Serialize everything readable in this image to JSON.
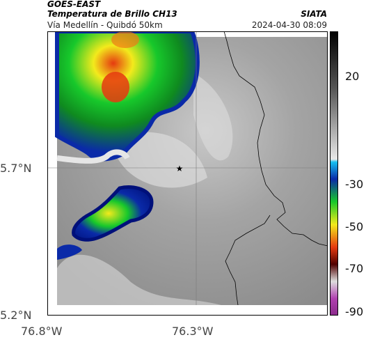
{
  "header": {
    "satellite": "GOES-EAST",
    "product": "Temperatura de Brillo CH13",
    "location": "Vía Medellín - Quibdó 50km",
    "organization": "SIATA",
    "datetime": "2024-04-30 08:09"
  },
  "axes": {
    "y_ticks": [
      "5.7°N",
      "5.2°N"
    ],
    "x_ticks": [
      "76.8°W",
      "76.3°W"
    ]
  },
  "colorbar": {
    "ticks": [
      "20",
      "-30",
      "-50",
      "-70",
      "-90"
    ]
  },
  "colors": {
    "cold_red": "#e53a10",
    "cold_yellow": "#f3ea1c",
    "cold_green": "#17c82b",
    "cold_blue": "#0a2aa8",
    "background_gray": "#9a9a9a"
  }
}
